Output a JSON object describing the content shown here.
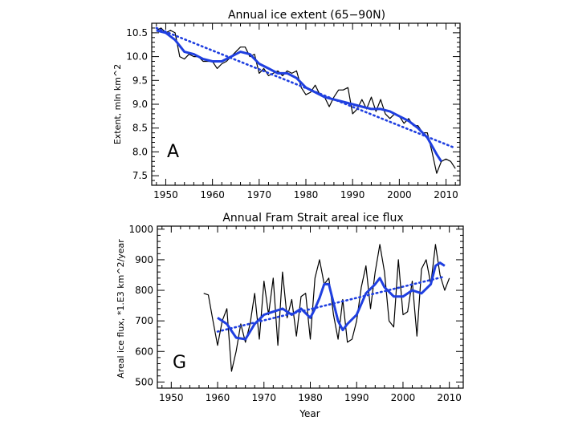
{
  "chart_data": [
    {
      "type": "line",
      "title": "Annual ice extent (65−90N)",
      "ylabel": "Extent, mln km^2",
      "xlabel": "",
      "panel_label": "A",
      "xlim": [
        1947,
        2013
      ],
      "ylim": [
        7.3,
        10.7
      ],
      "xticks": [
        1950,
        1960,
        1970,
        1980,
        1990,
        2000,
        2010
      ],
      "yticks": [
        7.5,
        8.0,
        8.5,
        9.0,
        9.5,
        10.0,
        10.5
      ],
      "grid": false,
      "colors": {
        "annual": "#000000",
        "smoothed": "#1f3fe0",
        "trend": "#1f3fe0"
      },
      "series": [
        {
          "style": "thin-black",
          "x": [
            1948,
            1949,
            1950,
            1951,
            1952,
            1953,
            1954,
            1955,
            1956,
            1957,
            1958,
            1959,
            1960,
            1961,
            1962,
            1963,
            1964,
            1965,
            1966,
            1967,
            1968,
            1969,
            1970,
            1971,
            1972,
            1973,
            1974,
            1975,
            1976,
            1977,
            1978,
            1979,
            1980,
            1981,
            1982,
            1983,
            1984,
            1985,
            1986,
            1987,
            1988,
            1989,
            1990,
            1991,
            1992,
            1993,
            1994,
            1995,
            1996,
            1997,
            1998,
            1999,
            2000,
            2001,
            2002,
            2003,
            2004,
            2005,
            2006,
            2007,
            2008,
            2009,
            2010,
            2011,
            2012
          ],
          "y": [
            10.55,
            10.6,
            10.5,
            10.55,
            10.5,
            10.0,
            9.95,
            10.05,
            10.0,
            10.0,
            9.9,
            9.9,
            9.9,
            9.75,
            9.85,
            9.9,
            10.0,
            10.1,
            10.2,
            10.2,
            10.0,
            10.05,
            9.65,
            9.75,
            9.6,
            9.65,
            9.7,
            9.6,
            9.7,
            9.65,
            9.7,
            9.35,
            9.2,
            9.25,
            9.4,
            9.2,
            9.15,
            8.95,
            9.15,
            9.3,
            9.3,
            9.35,
            8.8,
            8.9,
            9.1,
            8.9,
            9.15,
            8.85,
            9.1,
            8.8,
            8.7,
            8.8,
            8.75,
            8.6,
            8.7,
            8.55,
            8.55,
            8.4,
            8.4,
            8.0,
            7.55,
            7.8,
            7.85,
            7.8,
            7.65
          ]
        },
        {
          "style": "thick-blue",
          "x": [
            1948,
            1950,
            1952,
            1954,
            1956,
            1958,
            1960,
            1962,
            1964,
            1966,
            1968,
            1970,
            1972,
            1974,
            1976,
            1978,
            1980,
            1982,
            1984,
            1986,
            1988,
            1990,
            1992,
            1994,
            1996,
            1998,
            2000,
            2002,
            2004,
            2006,
            2008,
            2009
          ],
          "y": [
            10.55,
            10.5,
            10.35,
            10.1,
            10.05,
            9.95,
            9.9,
            9.9,
            10.0,
            10.1,
            10.05,
            9.85,
            9.75,
            9.65,
            9.65,
            9.55,
            9.35,
            9.25,
            9.15,
            9.1,
            9.05,
            9.0,
            8.95,
            8.9,
            8.9,
            8.85,
            8.75,
            8.65,
            8.5,
            8.3,
            7.95,
            7.8
          ]
        },
        {
          "style": "dotted-blue-trend",
          "x": [
            1948,
            2012
          ],
          "y": [
            10.6,
            8.08
          ]
        }
      ]
    },
    {
      "type": "line",
      "title": "Annual Fram Strait areal ice flux",
      "ylabel": "Areal ice flux, *1.E3 km^2/year",
      "xlabel": "Year",
      "panel_label": "G",
      "xlim": [
        1947,
        2013
      ],
      "ylim": [
        480,
        1010
      ],
      "xticks": [
        1950,
        1960,
        1970,
        1980,
        1990,
        2000,
        2010
      ],
      "yticks": [
        500,
        600,
        700,
        800,
        900,
        1000
      ],
      "grid": false,
      "colors": {
        "annual": "#000000",
        "smoothed": "#1f3fe0",
        "trend": "#1f3fe0"
      },
      "series": [
        {
          "style": "thin-black",
          "x": [
            1957,
            1958,
            1959,
            1960,
            1961,
            1962,
            1963,
            1964,
            1965,
            1966,
            1967,
            1968,
            1969,
            1970,
            1971,
            1972,
            1973,
            1974,
            1975,
            1976,
            1977,
            1978,
            1979,
            1980,
            1981,
            1982,
            1983,
            1984,
            1985,
            1986,
            1987,
            1988,
            1989,
            1990,
            1991,
            1992,
            1993,
            1994,
            1995,
            1996,
            1997,
            1998,
            1999,
            2000,
            2001,
            2002,
            2003,
            2004,
            2005,
            2006,
            2007,
            2008,
            2009,
            2010
          ],
          "y": [
            790,
            785,
            700,
            620,
            700,
            740,
            535,
            600,
            690,
            630,
            690,
            790,
            640,
            830,
            720,
            840,
            620,
            860,
            710,
            770,
            650,
            780,
            790,
            640,
            840,
            900,
            820,
            840,
            720,
            640,
            770,
            630,
            640,
            700,
            810,
            880,
            740,
            860,
            950,
            860,
            700,
            680,
            900,
            720,
            730,
            830,
            650,
            870,
            900,
            820,
            950,
            850,
            800,
            840
          ]
        },
        {
          "style": "thick-blue",
          "x": [
            1960,
            1962,
            1964,
            1966,
            1968,
            1970,
            1972,
            1974,
            1976,
            1978,
            1980,
            1981,
            1982,
            1983,
            1984,
            1986,
            1987,
            1988,
            1990,
            1992,
            1994,
            1995,
            1996,
            1998,
            2000,
            2002,
            2004,
            2006,
            2007,
            2008,
            2009
          ],
          "y": [
            710,
            690,
            645,
            640,
            690,
            720,
            730,
            740,
            720,
            740,
            710,
            740,
            775,
            820,
            820,
            700,
            670,
            690,
            720,
            790,
            820,
            840,
            810,
            780,
            780,
            800,
            790,
            820,
            880,
            890,
            880
          ]
        },
        {
          "style": "dotted-blue-trend",
          "x": [
            1960,
            2009
          ],
          "y": [
            665,
            845
          ]
        }
      ]
    }
  ]
}
